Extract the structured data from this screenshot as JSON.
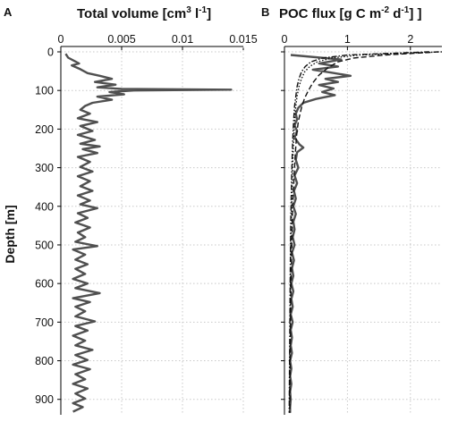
{
  "chart_data": [
    {
      "panel": "A",
      "type": "line",
      "title_parts": {
        "main": "Total volume [cm",
        "sup1": "3",
        "mid": " l",
        "sup2": "-1",
        "end": "]"
      },
      "ylabel": "Depth [m]",
      "x_ticks": [
        "0",
        "0.005",
        "0.01",
        "0.015"
      ],
      "xlim": [
        0,
        0.015
      ],
      "y_ticks": [
        "0",
        "100",
        "200",
        "300",
        "400",
        "500",
        "600",
        "700",
        "800",
        "900"
      ],
      "ylim": [
        0,
        940
      ],
      "y_inverted": true,
      "grid": true,
      "series": [
        {
          "color": "#505050",
          "points": [
            [
              0.0004,
              5
            ],
            [
              0.0006,
              15
            ],
            [
              0.0012,
              25
            ],
            [
              0.0015,
              30
            ],
            [
              0.0009,
              35
            ],
            [
              0.0016,
              45
            ],
            [
              0.0022,
              55
            ],
            [
              0.0032,
              62
            ],
            [
              0.0042,
              70
            ],
            [
              0.0028,
              78
            ],
            [
              0.0045,
              85
            ],
            [
              0.003,
              92
            ],
            [
              0.005,
              96
            ],
            [
              0.014,
              98
            ],
            [
              0.006,
              100
            ],
            [
              0.004,
              104
            ],
            [
              0.0052,
              110
            ],
            [
              0.003,
              116
            ],
            [
              0.0042,
              124
            ],
            [
              0.0026,
              132
            ],
            [
              0.002,
              140
            ],
            [
              0.0016,
              150
            ],
            [
              0.0024,
              160
            ],
            [
              0.0014,
              172
            ],
            [
              0.003,
              182
            ],
            [
              0.0016,
              192
            ],
            [
              0.0026,
              205
            ],
            [
              0.0014,
              215
            ],
            [
              0.0028,
              228
            ],
            [
              0.0016,
              238
            ],
            [
              0.0032,
              245
            ],
            [
              0.0018,
              252
            ],
            [
              0.003,
              262
            ],
            [
              0.0014,
              272
            ],
            [
              0.0024,
              285
            ],
            [
              0.0016,
              298
            ],
            [
              0.0026,
              310
            ],
            [
              0.0014,
              322
            ],
            [
              0.0024,
              335
            ],
            [
              0.0016,
              348
            ],
            [
              0.0026,
              360
            ],
            [
              0.0014,
              372
            ],
            [
              0.0024,
              385
            ],
            [
              0.0016,
              395
            ],
            [
              0.003,
              405
            ],
            [
              0.0014,
              418
            ],
            [
              0.0022,
              430
            ],
            [
              0.0012,
              442
            ],
            [
              0.0024,
              455
            ],
            [
              0.0014,
              468
            ],
            [
              0.002,
              480
            ],
            [
              0.0012,
              492
            ],
            [
              0.003,
              503
            ],
            [
              0.001,
              512
            ],
            [
              0.002,
              525
            ],
            [
              0.0012,
              538
            ],
            [
              0.0022,
              550
            ],
            [
              0.0012,
              562
            ],
            [
              0.002,
              575
            ],
            [
              0.001,
              588
            ],
            [
              0.0022,
              600
            ],
            [
              0.0012,
              612
            ],
            [
              0.0032,
              625
            ],
            [
              0.001,
              638
            ],
            [
              0.0024,
              648
            ],
            [
              0.0012,
              660
            ],
            [
              0.002,
              672
            ],
            [
              0.0012,
              685
            ],
            [
              0.0028,
              698
            ],
            [
              0.0012,
              710
            ],
            [
              0.0022,
              722
            ],
            [
              0.001,
              735
            ],
            [
              0.002,
              748
            ],
            [
              0.0012,
              760
            ],
            [
              0.0026,
              772
            ],
            [
              0.0012,
              785
            ],
            [
              0.0022,
              798
            ],
            [
              0.001,
              810
            ],
            [
              0.0024,
              822
            ],
            [
              0.0012,
              835
            ],
            [
              0.002,
              848
            ],
            [
              0.001,
              860
            ],
            [
              0.0022,
              872
            ],
            [
              0.0012,
              885
            ],
            [
              0.002,
              898
            ],
            [
              0.001,
              910
            ],
            [
              0.0018,
              920
            ],
            [
              0.001,
              932
            ]
          ]
        }
      ]
    },
    {
      "panel": "B",
      "type": "line",
      "title_parts": {
        "main": "POC flux [g C m",
        "sup1": "-2",
        "mid": " d",
        "sup2": "-1",
        "end": "] ]"
      },
      "x_ticks": [
        "0",
        "1",
        "2"
      ],
      "xlim": [
        0,
        2.5
      ],
      "ylim": [
        0,
        940
      ],
      "y_inverted": true,
      "grid": true,
      "series": [
        {
          "style": "solid",
          "color": "#505050",
          "points": [
            [
              0.1,
              8
            ],
            [
              0.9,
              20
            ],
            [
              0.55,
              30
            ],
            [
              0.85,
              38
            ],
            [
              0.45,
              46
            ],
            [
              0.75,
              54
            ],
            [
              1.05,
              62
            ],
            [
              0.65,
              70
            ],
            [
              0.85,
              78
            ],
            [
              0.55,
              86
            ],
            [
              0.78,
              95
            ],
            [
              0.6,
              104
            ],
            [
              0.8,
              112
            ],
            [
              0.5,
              122
            ],
            [
              0.3,
              132
            ],
            [
              0.22,
              145
            ],
            [
              0.18,
              160
            ],
            [
              0.2,
              175
            ],
            [
              0.16,
              190
            ],
            [
              0.2,
              205
            ],
            [
              0.16,
              222
            ],
            [
              0.24,
              240
            ],
            [
              0.3,
              248
            ],
            [
              0.2,
              260
            ],
            [
              0.18,
              280
            ],
            [
              0.22,
              300
            ],
            [
              0.16,
              320
            ],
            [
              0.2,
              340
            ],
            [
              0.15,
              360
            ],
            [
              0.18,
              380
            ],
            [
              0.14,
              400
            ],
            [
              0.18,
              420
            ],
            [
              0.14,
              440
            ],
            [
              0.16,
              460
            ],
            [
              0.13,
              480
            ],
            [
              0.16,
              500
            ],
            [
              0.12,
              520
            ],
            [
              0.15,
              540
            ],
            [
              0.12,
              560
            ],
            [
              0.14,
              580
            ],
            [
              0.11,
              600
            ],
            [
              0.14,
              620
            ],
            [
              0.11,
              640
            ],
            [
              0.13,
              660
            ],
            [
              0.1,
              680
            ],
            [
              0.13,
              700
            ],
            [
              0.1,
              720
            ],
            [
              0.12,
              740
            ],
            [
              0.1,
              760
            ],
            [
              0.12,
              780
            ],
            [
              0.09,
              800
            ],
            [
              0.11,
              820
            ],
            [
              0.09,
              840
            ],
            [
              0.11,
              860
            ],
            [
              0.09,
              880
            ],
            [
              0.1,
              900
            ],
            [
              0.09,
              920
            ],
            [
              0.09,
              935
            ]
          ]
        },
        {
          "style": "dashed",
          "color": "#111111",
          "points": [
            [
              2.45,
              0
            ],
            [
              1.6,
              8
            ],
            [
              1.1,
              16
            ],
            [
              0.85,
              26
            ],
            [
              0.7,
              40
            ],
            [
              0.55,
              60
            ],
            [
              0.45,
              80
            ],
            [
              0.38,
              100
            ],
            [
              0.32,
              120
            ],
            [
              0.27,
              145
            ],
            [
              0.22,
              180
            ],
            [
              0.19,
              220
            ],
            [
              0.17,
              270
            ],
            [
              0.15,
              330
            ],
            [
              0.13,
              400
            ],
            [
              0.12,
              480
            ],
            [
              0.11,
              560
            ],
            [
              0.1,
              650
            ],
            [
              0.095,
              740
            ],
            [
              0.09,
              830
            ],
            [
              0.085,
              935
            ]
          ]
        },
        {
          "style": "dotted",
          "color": "#111111",
          "points": [
            [
              2.5,
              0
            ],
            [
              1.2,
              8
            ],
            [
              0.75,
              16
            ],
            [
              0.52,
              26
            ],
            [
              0.4,
              38
            ],
            [
              0.32,
              52
            ],
            [
              0.27,
              70
            ],
            [
              0.23,
              90
            ],
            [
              0.2,
              115
            ],
            [
              0.18,
              140
            ],
            [
              0.16,
              180
            ],
            [
              0.145,
              230
            ],
            [
              0.13,
              290
            ],
            [
              0.12,
              360
            ],
            [
              0.11,
              440
            ],
            [
              0.1,
              520
            ],
            [
              0.095,
              620
            ],
            [
              0.09,
              720
            ],
            [
              0.085,
              830
            ],
            [
              0.08,
              935
            ]
          ]
        },
        {
          "style": "dashdot",
          "color": "#111111",
          "points": [
            [
              2.3,
              0
            ],
            [
              1.0,
              8
            ],
            [
              0.6,
              16
            ],
            [
              0.42,
              26
            ],
            [
              0.33,
              38
            ],
            [
              0.27,
              52
            ],
            [
              0.23,
              70
            ],
            [
              0.2,
              90
            ],
            [
              0.18,
              115
            ],
            [
              0.16,
              140
            ],
            [
              0.145,
              180
            ],
            [
              0.13,
              230
            ],
            [
              0.12,
              290
            ],
            [
              0.11,
              360
            ],
            [
              0.1,
              440
            ],
            [
              0.095,
              520
            ],
            [
              0.09,
              620
            ],
            [
              0.085,
              720
            ],
            [
              0.08,
              830
            ],
            [
              0.075,
              935
            ]
          ]
        }
      ]
    }
  ]
}
